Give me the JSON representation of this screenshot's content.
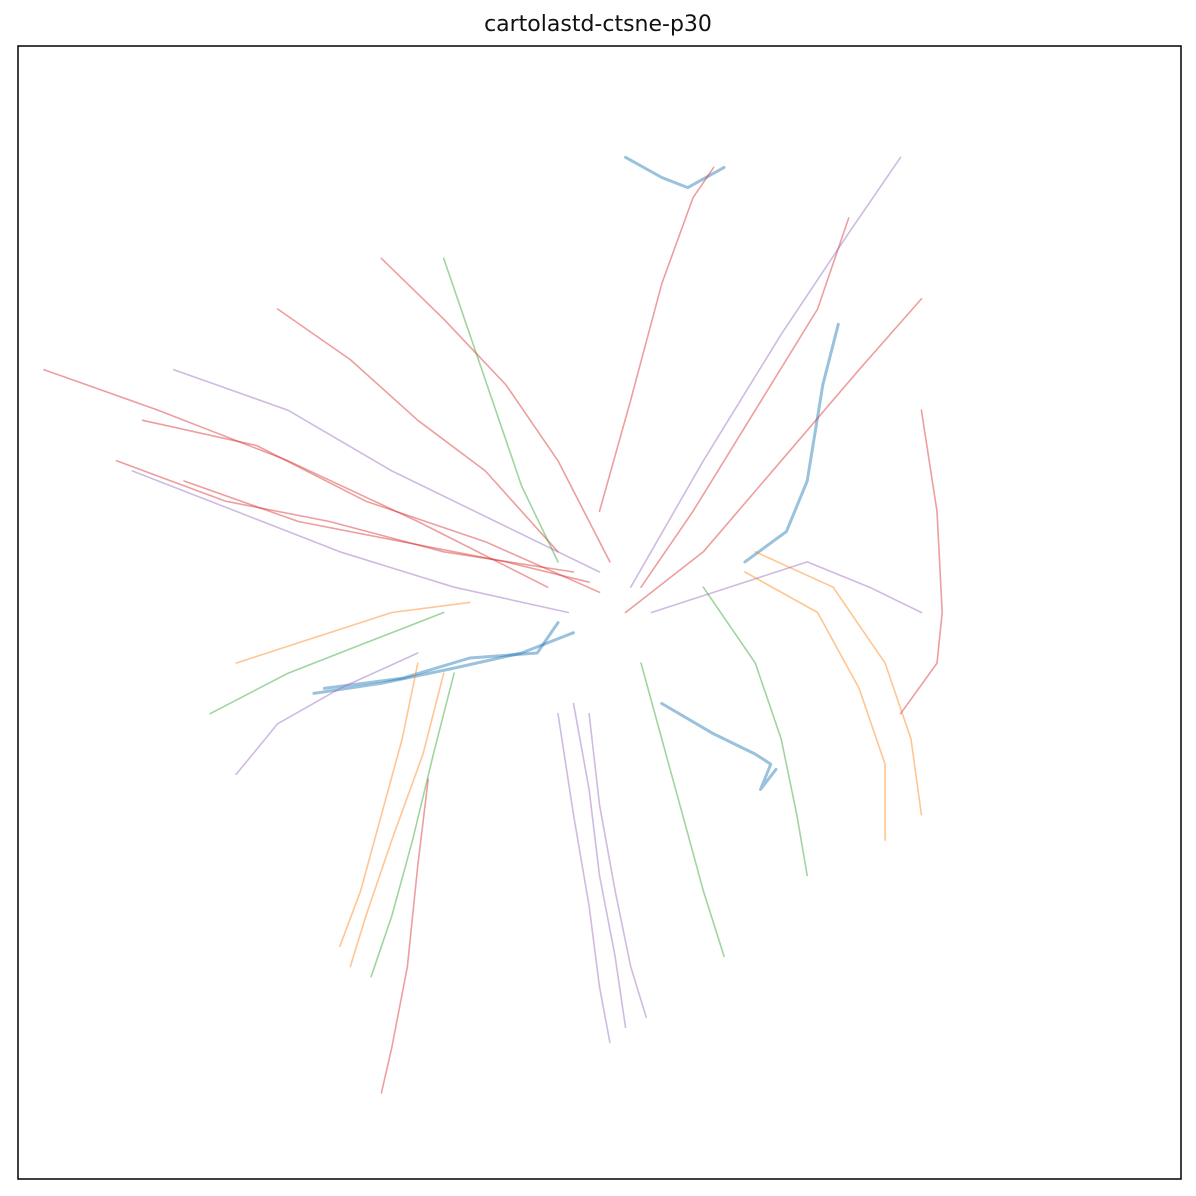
{
  "chart_data": {
    "type": "line",
    "title": "cartolastd-ctsne-p30",
    "xlabel": "",
    "ylabel": "",
    "axes_visible": false,
    "grid": false,
    "legend": "none",
    "line_alpha": 0.45,
    "colors": {
      "blue": "#1f77b4",
      "orange": "#ff7f0e",
      "green": "#2ca02c",
      "red": "#d62728",
      "purple": "#9467bd"
    },
    "series": [
      {
        "color": "blue",
        "points": [
          [
            -0.55,
            -0.16
          ],
          [
            -0.42,
            -0.14
          ],
          [
            -0.28,
            -0.11
          ],
          [
            -0.15,
            -0.08
          ],
          [
            -0.05,
            -0.04
          ]
        ]
      },
      {
        "color": "blue",
        "points": [
          [
            -0.53,
            -0.15
          ],
          [
            -0.38,
            -0.13
          ],
          [
            -0.25,
            -0.09
          ],
          [
            -0.12,
            -0.08
          ],
          [
            -0.08,
            -0.02
          ]
        ]
      },
      {
        "color": "blue",
        "points": [
          [
            0.28,
            0.1
          ],
          [
            0.36,
            0.16
          ],
          [
            0.4,
            0.26
          ],
          [
            0.43,
            0.45
          ],
          [
            0.46,
            0.57
          ]
        ]
      },
      {
        "color": "blue",
        "points": [
          [
            0.12,
            -0.18
          ],
          [
            0.22,
            -0.24
          ],
          [
            0.3,
            -0.28
          ],
          [
            0.33,
            -0.3
          ],
          [
            0.31,
            -0.35
          ],
          [
            0.34,
            -0.31
          ]
        ]
      },
      {
        "color": "blue",
        "points": [
          [
            0.05,
            0.9
          ],
          [
            0.12,
            0.86
          ],
          [
            0.17,
            0.84
          ],
          [
            0.24,
            0.88
          ]
        ]
      },
      {
        "color": "red",
        "points": [
          [
            -1.07,
            0.48
          ],
          [
            -0.85,
            0.4
          ],
          [
            -0.6,
            0.3
          ],
          [
            -0.35,
            0.18
          ],
          [
            -0.1,
            0.05
          ]
        ]
      },
      {
        "color": "red",
        "points": [
          [
            -0.93,
            0.3
          ],
          [
            -0.72,
            0.22
          ],
          [
            -0.52,
            0.18
          ],
          [
            -0.3,
            0.12
          ],
          [
            -0.05,
            0.08
          ]
        ]
      },
      {
        "color": "red",
        "points": [
          [
            -0.88,
            0.38
          ],
          [
            -0.66,
            0.33
          ],
          [
            -0.45,
            0.22
          ],
          [
            -0.22,
            0.14
          ],
          [
            0.0,
            0.04
          ]
        ]
      },
      {
        "color": "red",
        "points": [
          [
            -0.8,
            0.26
          ],
          [
            -0.58,
            0.18
          ],
          [
            -0.38,
            0.14
          ],
          [
            -0.18,
            0.1
          ],
          [
            -0.02,
            0.06
          ]
        ]
      },
      {
        "color": "red",
        "points": [
          [
            -0.62,
            0.6
          ],
          [
            -0.48,
            0.5
          ],
          [
            -0.35,
            0.38
          ],
          [
            -0.22,
            0.28
          ],
          [
            -0.08,
            0.12
          ]
        ]
      },
      {
        "color": "red",
        "points": [
          [
            -0.42,
            0.7
          ],
          [
            -0.3,
            0.58
          ],
          [
            -0.18,
            0.45
          ],
          [
            -0.08,
            0.3
          ],
          [
            0.02,
            0.1
          ]
        ]
      },
      {
        "color": "red",
        "points": [
          [
            0.0,
            0.2
          ],
          [
            0.06,
            0.42
          ],
          [
            0.12,
            0.65
          ],
          [
            0.18,
            0.82
          ],
          [
            0.22,
            0.88
          ]
        ]
      },
      {
        "color": "red",
        "points": [
          [
            0.08,
            0.05
          ],
          [
            0.18,
            0.2
          ],
          [
            0.3,
            0.4
          ],
          [
            0.42,
            0.6
          ],
          [
            0.48,
            0.78
          ]
        ]
      },
      {
        "color": "red",
        "points": [
          [
            0.05,
            0.0
          ],
          [
            0.2,
            0.12
          ],
          [
            0.35,
            0.3
          ],
          [
            0.5,
            0.48
          ],
          [
            0.62,
            0.62
          ]
        ]
      },
      {
        "color": "red",
        "points": [
          [
            -0.33,
            -0.33
          ],
          [
            -0.35,
            -0.5
          ],
          [
            -0.37,
            -0.7
          ],
          [
            -0.4,
            -0.86
          ],
          [
            -0.42,
            -0.95
          ]
        ]
      },
      {
        "color": "red",
        "points": [
          [
            0.62,
            0.4
          ],
          [
            0.65,
            0.2
          ],
          [
            0.66,
            0.0
          ],
          [
            0.65,
            -0.1
          ],
          [
            0.58,
            -0.2
          ]
        ]
      },
      {
        "color": "purple",
        "points": [
          [
            -0.82,
            0.48
          ],
          [
            -0.6,
            0.4
          ],
          [
            -0.4,
            0.28
          ],
          [
            -0.2,
            0.18
          ],
          [
            0.0,
            0.08
          ]
        ]
      },
      {
        "color": "purple",
        "points": [
          [
            -0.9,
            0.28
          ],
          [
            -0.7,
            0.2
          ],
          [
            -0.5,
            0.12
          ],
          [
            -0.28,
            0.05
          ],
          [
            -0.06,
            0.0
          ]
        ]
      },
      {
        "color": "purple",
        "points": [
          [
            -0.7,
            -0.32
          ],
          [
            -0.62,
            -0.22
          ],
          [
            -0.5,
            -0.15
          ],
          [
            -0.35,
            -0.08
          ]
        ]
      },
      {
        "color": "purple",
        "points": [
          [
            -0.02,
            -0.2
          ],
          [
            0.0,
            -0.38
          ],
          [
            0.03,
            -0.55
          ],
          [
            0.06,
            -0.7
          ],
          [
            0.09,
            -0.8
          ]
        ]
      },
      {
        "color": "purple",
        "points": [
          [
            -0.05,
            -0.18
          ],
          [
            -0.02,
            -0.35
          ],
          [
            0.0,
            -0.52
          ],
          [
            0.03,
            -0.68
          ],
          [
            0.05,
            -0.82
          ]
        ]
      },
      {
        "color": "purple",
        "points": [
          [
            -0.08,
            -0.2
          ],
          [
            -0.05,
            -0.4
          ],
          [
            -0.02,
            -0.58
          ],
          [
            0.0,
            -0.74
          ],
          [
            0.02,
            -0.85
          ]
        ]
      },
      {
        "color": "purple",
        "points": [
          [
            0.06,
            0.05
          ],
          [
            0.2,
            0.3
          ],
          [
            0.35,
            0.55
          ],
          [
            0.48,
            0.75
          ],
          [
            0.58,
            0.9
          ]
        ]
      },
      {
        "color": "purple",
        "points": [
          [
            0.1,
            0.0
          ],
          [
            0.25,
            0.05
          ],
          [
            0.4,
            0.1
          ],
          [
            0.52,
            0.05
          ],
          [
            0.62,
            0.0
          ]
        ]
      },
      {
        "color": "orange",
        "points": [
          [
            -0.35,
            -0.1
          ],
          [
            -0.38,
            -0.25
          ],
          [
            -0.42,
            -0.4
          ],
          [
            -0.46,
            -0.55
          ],
          [
            -0.5,
            -0.66
          ]
        ]
      },
      {
        "color": "orange",
        "points": [
          [
            -0.3,
            -0.12
          ],
          [
            -0.34,
            -0.28
          ],
          [
            -0.4,
            -0.45
          ],
          [
            -0.45,
            -0.6
          ],
          [
            -0.48,
            -0.7
          ]
        ]
      },
      {
        "color": "orange",
        "points": [
          [
            0.3,
            0.12
          ],
          [
            0.45,
            0.05
          ],
          [
            0.55,
            -0.1
          ],
          [
            0.6,
            -0.25
          ],
          [
            0.62,
            -0.4
          ]
        ]
      },
      {
        "color": "orange",
        "points": [
          [
            0.28,
            0.08
          ],
          [
            0.42,
            0.0
          ],
          [
            0.5,
            -0.15
          ],
          [
            0.55,
            -0.3
          ],
          [
            0.55,
            -0.45
          ]
        ]
      },
      {
        "color": "orange",
        "points": [
          [
            -0.7,
            -0.1
          ],
          [
            -0.55,
            -0.05
          ],
          [
            -0.4,
            0.0
          ],
          [
            -0.25,
            0.02
          ]
        ]
      },
      {
        "color": "green",
        "points": [
          [
            -0.28,
            -0.12
          ],
          [
            -0.32,
            -0.28
          ],
          [
            -0.36,
            -0.45
          ],
          [
            -0.4,
            -0.6
          ],
          [
            -0.44,
            -0.72
          ]
        ]
      },
      {
        "color": "green",
        "points": [
          [
            0.08,
            -0.1
          ],
          [
            0.12,
            -0.25
          ],
          [
            0.16,
            -0.4
          ],
          [
            0.2,
            -0.55
          ],
          [
            0.24,
            -0.68
          ]
        ]
      },
      {
        "color": "green",
        "points": [
          [
            0.2,
            0.05
          ],
          [
            0.3,
            -0.1
          ],
          [
            0.35,
            -0.25
          ],
          [
            0.38,
            -0.4
          ],
          [
            0.4,
            -0.52
          ]
        ]
      },
      {
        "color": "green",
        "points": [
          [
            -0.3,
            0.7
          ],
          [
            -0.25,
            0.55
          ],
          [
            -0.2,
            0.4
          ],
          [
            -0.15,
            0.25
          ],
          [
            -0.08,
            0.1
          ]
        ]
      },
      {
        "color": "green",
        "points": [
          [
            -0.75,
            -0.2
          ],
          [
            -0.6,
            -0.12
          ],
          [
            -0.45,
            -0.06
          ],
          [
            -0.3,
            0.0
          ]
        ]
      }
    ]
  }
}
